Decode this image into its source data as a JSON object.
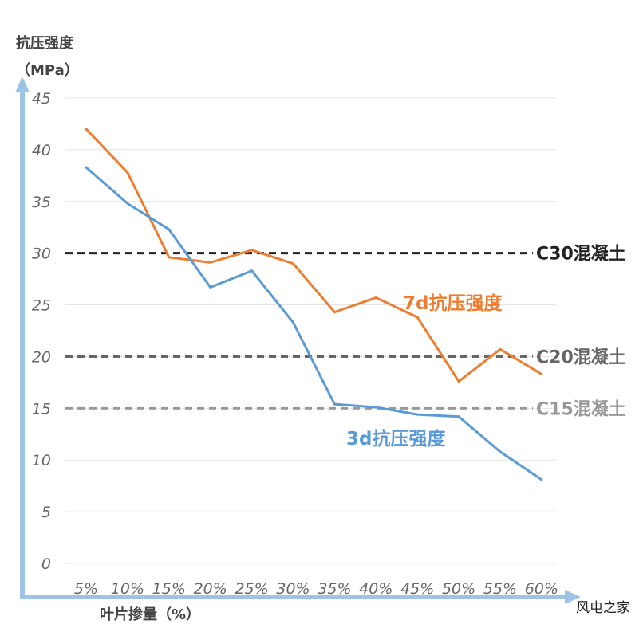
{
  "chart_data": {
    "type": "line",
    "ylabel_line1": "抗压强度",
    "ylabel_line2": "（MPa）",
    "xlabel": "叶片掺量（%）",
    "categories": [
      "5%",
      "10%",
      "15%",
      "20%",
      "25%",
      "30%",
      "35%",
      "40%",
      "45%",
      "50%",
      "55%",
      "60%"
    ],
    "y_ticks": [
      "0",
      "5",
      "10",
      "15",
      "20",
      "25",
      "30",
      "35",
      "40",
      "45"
    ],
    "ylim": [
      0,
      45
    ],
    "grid": true,
    "series": [
      {
        "name": "7d抗压强度",
        "color": "#ED7D31",
        "values": [
          42.0,
          37.8,
          29.6,
          29.1,
          30.3,
          29.0,
          24.3,
          25.7,
          23.8,
          17.6,
          20.7,
          18.3
        ]
      },
      {
        "name": "3d抗压强度",
        "color": "#5B9BD5",
        "values": [
          38.3,
          34.8,
          32.3,
          26.7,
          28.3,
          23.3,
          15.4,
          15.1,
          14.4,
          14.2,
          10.8,
          8.1
        ]
      }
    ],
    "reference_lines": [
      {
        "label": "C30混凝土",
        "value": 30,
        "color": "#222222"
      },
      {
        "label": "C20混凝土",
        "value": 20,
        "color": "#666666"
      },
      {
        "label": "C15混凝土",
        "value": 15,
        "color": "#999999"
      }
    ]
  },
  "watermark": "风电之家"
}
